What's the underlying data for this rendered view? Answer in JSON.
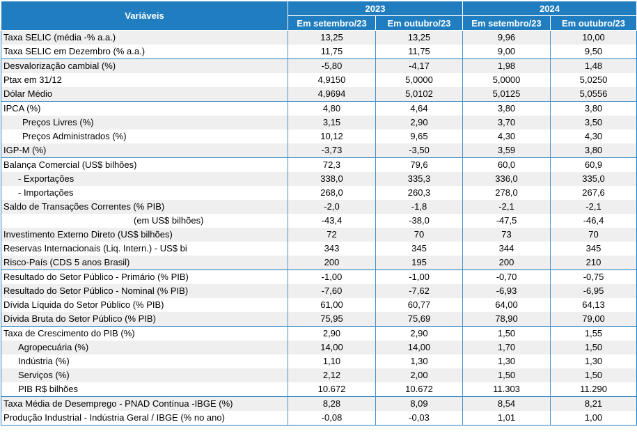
{
  "header": {
    "variables_label": "Variáveis",
    "years": [
      "2023",
      "2024"
    ],
    "subheaders": [
      "Em setembro/23",
      "Em outubro/23",
      "Em setembro/23",
      "Em outubro/23"
    ]
  },
  "colors": {
    "header_bg": "#1f7dc0",
    "row_shade": "#efefef",
    "border": "#1f7dc0"
  },
  "rows": [
    {
      "label": "Taxa SELIC (média -% a.a.)",
      "values": [
        "13,25",
        "13,25",
        "9,96",
        "10,00"
      ],
      "indent": 0,
      "sep": false
    },
    {
      "label": "Taxa SELIC em Dezembro (% a.a.)",
      "values": [
        "11,75",
        "11,75",
        "9,00",
        "9,50"
      ],
      "indent": 0,
      "sep": false
    },
    {
      "label": "Desvalorização cambial (%)",
      "values": [
        "-5,80",
        "-4,17",
        "1,98",
        "1,48"
      ],
      "indent": 0,
      "sep": true
    },
    {
      "label": "Ptax em 31/12",
      "values": [
        "4,9150",
        "5,0000",
        "5,0000",
        "5,0250"
      ],
      "indent": 0,
      "sep": false
    },
    {
      "label": "Dólar Médio",
      "values": [
        "4,9694",
        "5,0102",
        "5,0125",
        "5,0556"
      ],
      "indent": 0,
      "sep": false
    },
    {
      "label": "IPCA (%)",
      "values": [
        "4,80",
        "4,64",
        "3,80",
        "3,80"
      ],
      "indent": 0,
      "sep": true
    },
    {
      "label": "Preços Livres (%)",
      "values": [
        "3,15",
        "2,90",
        "3,70",
        "3,50"
      ],
      "indent": 2,
      "sep": false
    },
    {
      "label": "Preços Administrados (%)",
      "values": [
        "10,12",
        "9,65",
        "4,30",
        "4,30"
      ],
      "indent": 2,
      "sep": false
    },
    {
      "label": "IGP-M (%)",
      "values": [
        "-3,73",
        "-3,50",
        "3,59",
        "3,80"
      ],
      "indent": 0,
      "sep": false
    },
    {
      "label": "Balança Comercial (US$ bilhões)",
      "values": [
        "72,3",
        "79,6",
        "60,0",
        "60,9"
      ],
      "indent": 0,
      "sep": true
    },
    {
      "label": "- Exportações",
      "values": [
        "338,0",
        "335,3",
        "336,0",
        "335,0"
      ],
      "indent": 1,
      "sep": false
    },
    {
      "label": "- Importações",
      "values": [
        "268,0",
        "260,3",
        "278,0",
        "267,6"
      ],
      "indent": 1,
      "sep": false
    },
    {
      "label": "Saldo de Transações Correntes (% PIB)",
      "values": [
        "-2,0",
        "-1,8",
        "-2,1",
        "-2,1"
      ],
      "indent": 0,
      "sep": false
    },
    {
      "label": "(em US$ bilhões)",
      "values": [
        "-43,4",
        "-38,0",
        "-47,5",
        "-46,4"
      ],
      "indent": 3,
      "sep": false
    },
    {
      "label": "Investimento Externo Direto (US$ bilhões)",
      "values": [
        "72",
        "70",
        "73",
        "70"
      ],
      "indent": 0,
      "sep": false
    },
    {
      "label": "Reservas Internacionais (Liq. Intern.) - US$ bi",
      "values": [
        "343",
        "345",
        "344",
        "345"
      ],
      "indent": 0,
      "sep": false
    },
    {
      "label": "Risco-País (CDS 5 anos Brasil)",
      "values": [
        "200",
        "195",
        "200",
        "210"
      ],
      "indent": 0,
      "sep": false
    },
    {
      "label": "Resultado do Setor Público - Primário  (% PIB)",
      "values": [
        "-1,00",
        "-1,00",
        "-0,70",
        "-0,75"
      ],
      "indent": 0,
      "sep": true
    },
    {
      "label": "Resultado do Setor Público - Nominal  (% PIB)",
      "values": [
        "-7,60",
        "-7,62",
        "-6,93",
        "-6,95"
      ],
      "indent": 0,
      "sep": false
    },
    {
      "label": "Dívida Líquida do Setor Público (% PIB)",
      "values": [
        "61,00",
        "60,77",
        "64,00",
        "64,13"
      ],
      "indent": 0,
      "sep": false
    },
    {
      "label": "Dívida Bruta do Setor Público (% PIB)",
      "values": [
        "75,95",
        "75,69",
        "78,90",
        "79,00"
      ],
      "indent": 0,
      "sep": false
    },
    {
      "label": "Taxa de Crescimento do PIB (%)",
      "values": [
        "2,90",
        "2,90",
        "1,50",
        "1,55"
      ],
      "indent": 0,
      "sep": true
    },
    {
      "label": "Agropecuária (%)",
      "values": [
        "14,00",
        "14,00",
        "1,70",
        "1,50"
      ],
      "indent": 1,
      "sep": false
    },
    {
      "label": "Indústria (%)",
      "values": [
        "1,10",
        "1,30",
        "1,30",
        "1,30"
      ],
      "indent": 1,
      "sep": false
    },
    {
      "label": "Serviços (%)",
      "values": [
        "2,12",
        "2,00",
        "1,50",
        "1,50"
      ],
      "indent": 1,
      "sep": false
    },
    {
      "label": "PIB R$ bilhões",
      "values": [
        "10.672",
        "10.672",
        "11.303",
        "11.290"
      ],
      "indent": 1,
      "sep": false
    },
    {
      "label": "Taxa Média de Desemprego  - PNAD Contínua -IBGE (%)",
      "values": [
        "8,28",
        "8,09",
        "8,54",
        "8,21"
      ],
      "indent": 0,
      "sep": true
    },
    {
      "label": "Produção Industrial - Indústria Geral / IBGE (% no ano)",
      "values": [
        "-0,08",
        "-0,03",
        "1,01",
        "1,00"
      ],
      "indent": 0,
      "sep": false
    }
  ]
}
